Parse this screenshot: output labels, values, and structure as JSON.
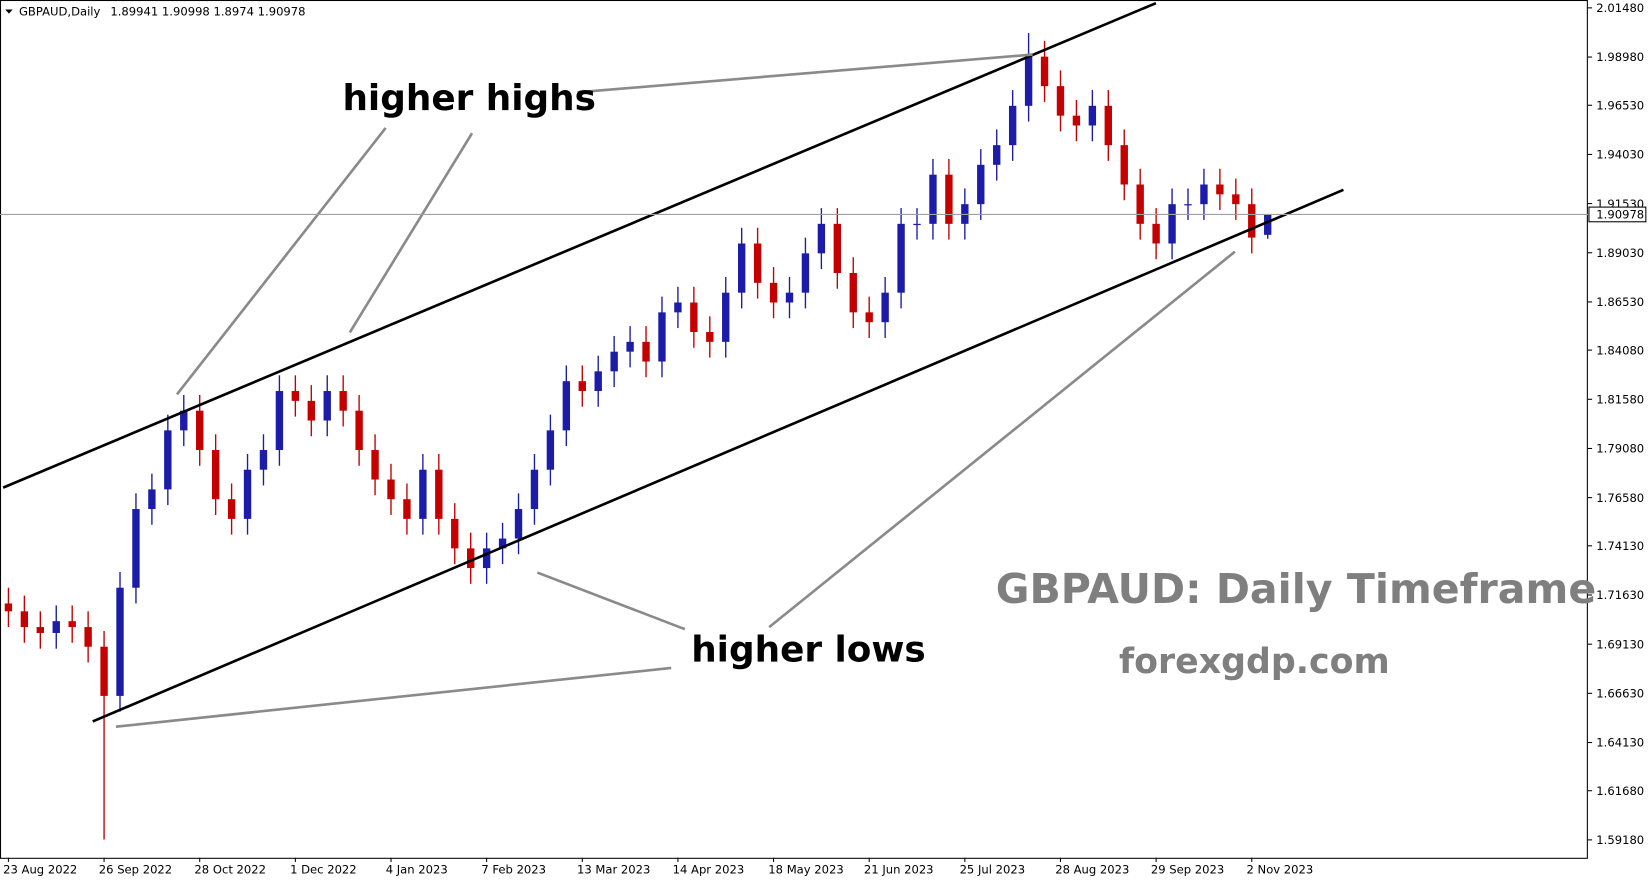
{
  "chart_data": {
    "type": "candlestick",
    "symbol": "GBPAUD,Daily",
    "title": "GBPAUD: Daily Timeframe",
    "subtitle": "forexgdp.com",
    "annotations": [
      "higher highs",
      "higher lows"
    ],
    "up_color": "#1c1ca8",
    "down_color": "#c40000",
    "categories": [
      "23 Aug 2022",
      "26 Sep 2022",
      "28 Oct 2022",
      "1 Dec 2022",
      "4 Jan 2023",
      "7 Feb 2023",
      "13 Mar 2023",
      "14 Apr 2023",
      "18 May 2023",
      "21 Jun 2023",
      "25 Jul 2023",
      "28 Aug 2023",
      "29 Sep 2023",
      "2 Nov 2023"
    ],
    "open": [
      1.712,
      1.708,
      1.7,
      1.697,
      1.703,
      1.7,
      1.69,
      1.665,
      1.72,
      1.76,
      1.77,
      1.8,
      1.81,
      1.79,
      1.765,
      1.755,
      1.78,
      1.79,
      1.82,
      1.815,
      1.805,
      1.82,
      1.81,
      1.79,
      1.775,
      1.765,
      1.755,
      1.78,
      1.755,
      1.74,
      1.73,
      1.74,
      1.745,
      1.76,
      1.78,
      1.8,
      1.825,
      1.82,
      1.83,
      1.84,
      1.845,
      1.835,
      1.86,
      1.865,
      1.85,
      1.845,
      1.87,
      1.895,
      1.875,
      1.865,
      1.87,
      1.89,
      1.905,
      1.88,
      1.86,
      1.855,
      1.87,
      1.905,
      1.905,
      1.93,
      1.905,
      1.915,
      1.935,
      1.945,
      1.965,
      1.99,
      1.975,
      1.96,
      1.955,
      1.965,
      1.945,
      1.925,
      1.905,
      1.895,
      1.915,
      1.915,
      1.925,
      1.92,
      1.915,
      1.89941
    ],
    "high": [
      1.72,
      1.716,
      1.708,
      1.711,
      1.711,
      1.708,
      1.698,
      1.728,
      1.768,
      1.778,
      1.808,
      1.818,
      1.818,
      1.798,
      1.773,
      1.788,
      1.798,
      1.828,
      1.828,
      1.823,
      1.828,
      1.828,
      1.818,
      1.798,
      1.783,
      1.773,
      1.788,
      1.788,
      1.763,
      1.748,
      1.748,
      1.753,
      1.768,
      1.788,
      1.808,
      1.833,
      1.833,
      1.838,
      1.848,
      1.853,
      1.853,
      1.868,
      1.873,
      1.873,
      1.858,
      1.878,
      1.903,
      1.903,
      1.883,
      1.878,
      1.898,
      1.913,
      1.913,
      1.888,
      1.868,
      1.878,
      1.913,
      1.913,
      1.938,
      1.938,
      1.923,
      1.943,
      1.953,
      1.973,
      2.002,
      1.998,
      1.983,
      1.968,
      1.973,
      1.973,
      1.953,
      1.933,
      1.913,
      1.923,
      1.923,
      1.933,
      1.933,
      1.928,
      1.923,
      1.90998
    ],
    "low": [
      1.7,
      1.692,
      1.689,
      1.689,
      1.692,
      1.682,
      1.592,
      1.657,
      1.712,
      1.752,
      1.762,
      1.792,
      1.782,
      1.757,
      1.747,
      1.747,
      1.772,
      1.782,
      1.807,
      1.797,
      1.797,
      1.802,
      1.782,
      1.767,
      1.757,
      1.747,
      1.747,
      1.747,
      1.732,
      1.722,
      1.722,
      1.732,
      1.737,
      1.752,
      1.772,
      1.792,
      1.812,
      1.812,
      1.822,
      1.832,
      1.827,
      1.827,
      1.852,
      1.842,
      1.837,
      1.837,
      1.862,
      1.867,
      1.857,
      1.857,
      1.862,
      1.882,
      1.872,
      1.852,
      1.847,
      1.847,
      1.862,
      1.897,
      1.897,
      1.897,
      1.897,
      1.907,
      1.927,
      1.937,
      1.957,
      1.967,
      1.952,
      1.947,
      1.947,
      1.937,
      1.917,
      1.897,
      1.887,
      1.887,
      1.907,
      1.907,
      1.912,
      1.907,
      1.89,
      1.8974
    ],
    "close": [
      1.708,
      1.7,
      1.697,
      1.703,
      1.7,
      1.69,
      1.665,
      1.72,
      1.76,
      1.77,
      1.8,
      1.81,
      1.79,
      1.765,
      1.755,
      1.78,
      1.79,
      1.82,
      1.815,
      1.805,
      1.82,
      1.81,
      1.79,
      1.775,
      1.765,
      1.755,
      1.78,
      1.755,
      1.74,
      1.73,
      1.74,
      1.745,
      1.76,
      1.78,
      1.8,
      1.825,
      1.82,
      1.83,
      1.84,
      1.845,
      1.835,
      1.86,
      1.865,
      1.85,
      1.845,
      1.87,
      1.895,
      1.875,
      1.865,
      1.87,
      1.89,
      1.905,
      1.88,
      1.86,
      1.855,
      1.87,
      1.905,
      1.905,
      1.93,
      1.905,
      1.915,
      1.935,
      1.945,
      1.965,
      1.99,
      1.975,
      1.96,
      1.955,
      1.965,
      1.945,
      1.925,
      1.905,
      1.895,
      1.915,
      1.915,
      1.925,
      1.92,
      1.915,
      1.898,
      1.90978
    ],
    "ylim": [
      1.5827,
      2.0188
    ],
    "yticks": [
      {
        "value": 2.0148,
        "label": "2.01480"
      },
      {
        "value": 1.9898,
        "label": "1.98980"
      },
      {
        "value": 1.9653,
        "label": "1.96530"
      },
      {
        "value": 1.9403,
        "label": "1.94030"
      },
      {
        "value": 1.9153,
        "label": "1.91530"
      },
      {
        "value": 1.8903,
        "label": "1.89030"
      },
      {
        "value": 1.8653,
        "label": "1.86530"
      },
      {
        "value": 1.8408,
        "label": "1.84080"
      },
      {
        "value": 1.8158,
        "label": "1.81580"
      },
      {
        "value": 1.7908,
        "label": "1.79080"
      },
      {
        "value": 1.7658,
        "label": "1.76580"
      },
      {
        "value": 1.7413,
        "label": "1.74130"
      },
      {
        "value": 1.7163,
        "label": "1.71630"
      },
      {
        "value": 1.6913,
        "label": "1.69130"
      },
      {
        "value": 1.6663,
        "label": "1.66630"
      },
      {
        "value": 1.6413,
        "label": "1.64130"
      },
      {
        "value": 1.6168,
        "label": "1.61680"
      },
      {
        "value": 1.5918,
        "label": "1.59180"
      }
    ]
  }
}
